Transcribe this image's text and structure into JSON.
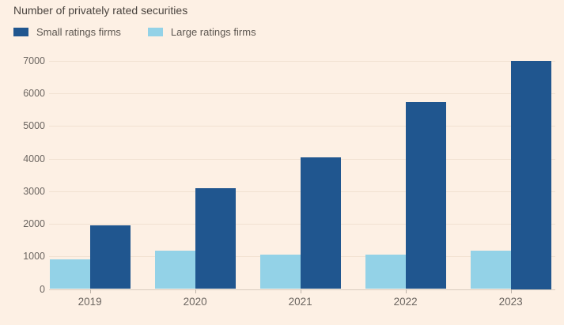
{
  "page": {
    "background_color": "#FDF0E4"
  },
  "chart_data": {
    "type": "bar",
    "title": "Number of privately rated securities",
    "categories": [
      "2019",
      "2020",
      "2021",
      "2022",
      "2023"
    ],
    "series": [
      {
        "name": "Small ratings firms",
        "color": "#20568F",
        "values": [
          1950,
          3100,
          4030,
          5730,
          7000
        ]
      },
      {
        "name": "Large ratings firms",
        "color": "#93D2E7",
        "values": [
          900,
          1170,
          1060,
          1060,
          1170
        ]
      }
    ],
    "bar_draw_order": [
      1,
      0
    ],
    "ylim": [
      0,
      7000
    ],
    "yticks": [
      0,
      1000,
      2000,
      3000,
      4000,
      5000,
      6000,
      7000
    ],
    "xlabel": "",
    "ylabel": "",
    "grid": true,
    "legend_position": "top-left"
  }
}
